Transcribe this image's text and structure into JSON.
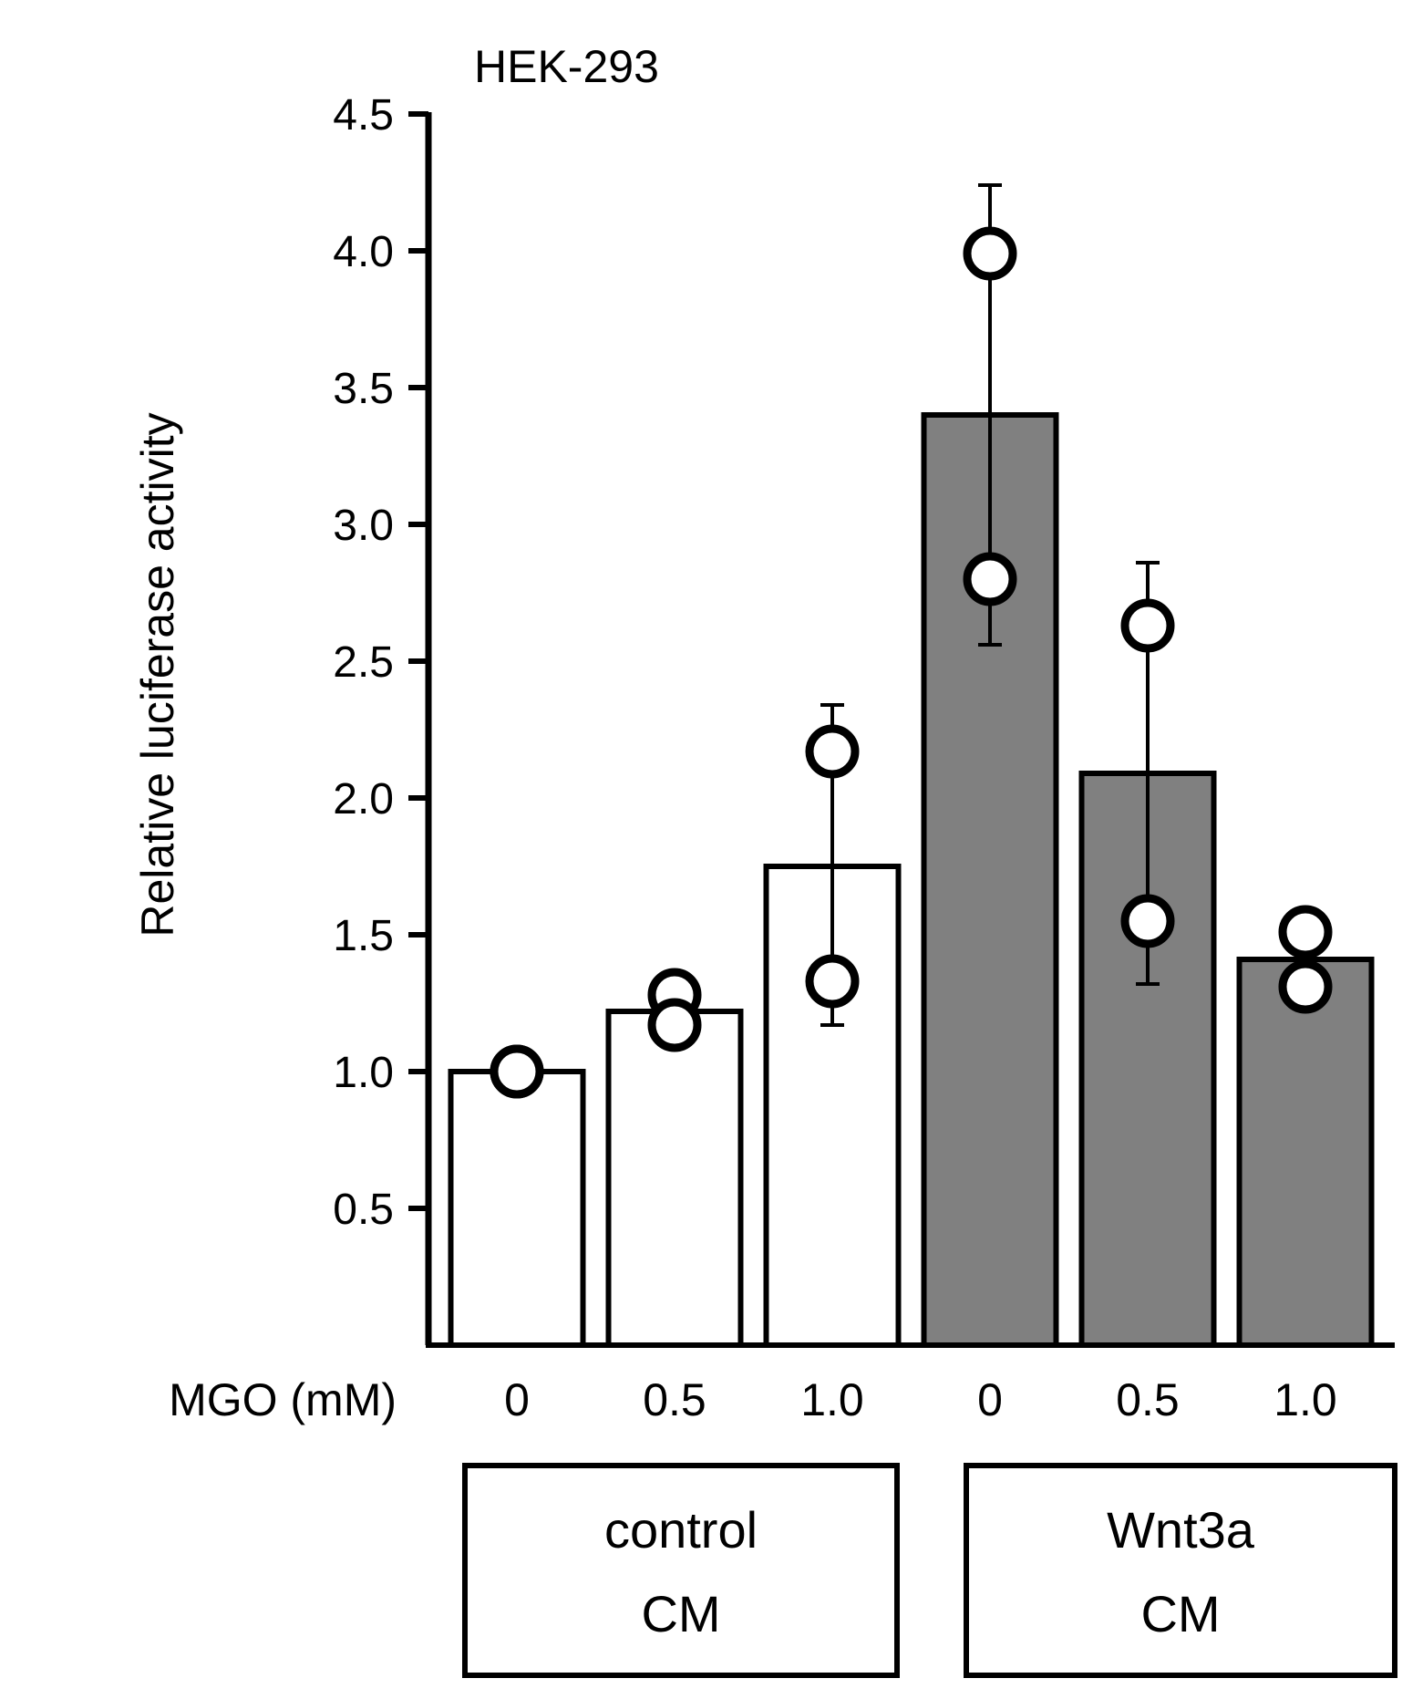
{
  "chart_data": {
    "type": "bar",
    "title": "HEK-293",
    "ylabel": "Relative luciferase activity",
    "xlabel": "MGO (mM)",
    "ylim": [
      0,
      4.5
    ],
    "yticks": [
      "0.5",
      "1.0",
      "1.5",
      "2.0",
      "2.5",
      "3.0",
      "3.5",
      "4.0",
      "4.5"
    ],
    "categories": [
      "0",
      "0.5",
      "1.0",
      "0",
      "0.5",
      "1.0"
    ],
    "values": [
      1.0,
      1.22,
      1.75,
      3.4,
      2.09,
      1.41
    ],
    "error_upper": [
      1.0,
      1.22,
      2.34,
      4.24,
      2.86,
      1.41
    ],
    "error_lower": [
      1.0,
      1.22,
      1.17,
      2.56,
      1.32,
      1.41
    ],
    "points": [
      [
        1.0,
        1.0
      ],
      [
        1.28,
        1.17
      ],
      [
        2.17,
        1.33
      ],
      [
        3.99,
        2.8
      ],
      [
        2.63,
        1.55
      ],
      [
        1.51,
        1.31
      ]
    ],
    "bar_colors": [
      "#ffffff",
      "#ffffff",
      "#ffffff",
      "#808080",
      "#808080",
      "#808080"
    ],
    "groups": [
      {
        "line1": "control",
        "line2": "CM",
        "from": 0,
        "to": 2
      },
      {
        "line1": "Wnt3a",
        "line2": "CM",
        "from": 3,
        "to": 5
      }
    ]
  }
}
